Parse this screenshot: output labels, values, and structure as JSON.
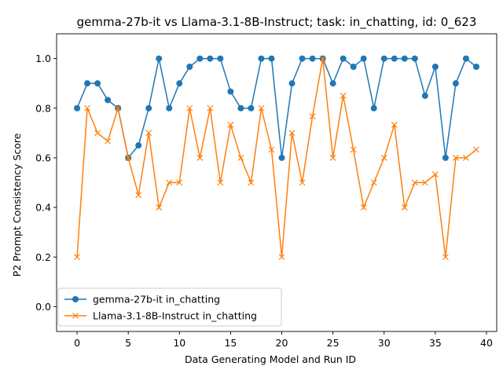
{
  "chart_data": {
    "type": "line",
    "title": "gemma-27b-it vs Llama-3.1-8B-Instruct; task: in_chatting, id: 0_623",
    "xlabel": "Data Generating Model and Run ID",
    "ylabel": "P2 Prompt Consistency Score",
    "xlim": [
      -2,
      41
    ],
    "ylim": [
      -0.1,
      1.1
    ],
    "xticks": [
      0,
      5,
      10,
      15,
      20,
      25,
      30,
      35,
      40
    ],
    "yticks": [
      0.0,
      0.2,
      0.4,
      0.6,
      0.8,
      1.0
    ],
    "xtick_labels": [
      "0",
      "5",
      "10",
      "15",
      "20",
      "25",
      "30",
      "35",
      "40"
    ],
    "ytick_labels": [
      "0.0",
      "0.2",
      "0.4",
      "0.6",
      "0.8",
      "1.0"
    ],
    "grid": false,
    "legend_position": "lower-left",
    "x": [
      0,
      1,
      2,
      3,
      4,
      5,
      6,
      7,
      8,
      9,
      10,
      11,
      12,
      13,
      14,
      15,
      16,
      17,
      18,
      19,
      20,
      21,
      22,
      23,
      24,
      25,
      26,
      27,
      28,
      29,
      30,
      31,
      32,
      33,
      34,
      35,
      36,
      37,
      38,
      39
    ],
    "series": [
      {
        "name": "gemma-27b-it in_chatting",
        "color": "#1f77b4",
        "marker": "circle",
        "values": [
          0.8,
          0.9,
          0.9,
          0.833,
          0.8,
          0.6,
          0.65,
          0.8,
          1.0,
          0.8,
          0.9,
          0.967,
          1.0,
          1.0,
          1.0,
          0.867,
          0.8,
          0.8,
          1.0,
          1.0,
          0.6,
          0.9,
          1.0,
          1.0,
          1.0,
          0.9,
          1.0,
          0.967,
          1.0,
          0.8,
          1.0,
          1.0,
          1.0,
          1.0,
          0.85,
          0.967,
          0.6,
          0.9,
          1.0,
          0.967
        ]
      },
      {
        "name": "Llama-3.1-8B-Instruct in_chatting",
        "color": "#ff7f0e",
        "marker": "x",
        "values": [
          0.2,
          0.8,
          0.7,
          0.667,
          0.8,
          0.6,
          0.45,
          0.7,
          0.4,
          0.5,
          0.5,
          0.8,
          0.6,
          0.8,
          0.5,
          0.733,
          0.6,
          0.5,
          0.8,
          0.633,
          0.2,
          0.7,
          0.5,
          0.767,
          1.0,
          0.6,
          0.85,
          0.633,
          0.4,
          0.5,
          0.6,
          0.733,
          0.4,
          0.5,
          0.5,
          0.533,
          0.2,
          0.6,
          0.6,
          0.633
        ]
      }
    ]
  }
}
